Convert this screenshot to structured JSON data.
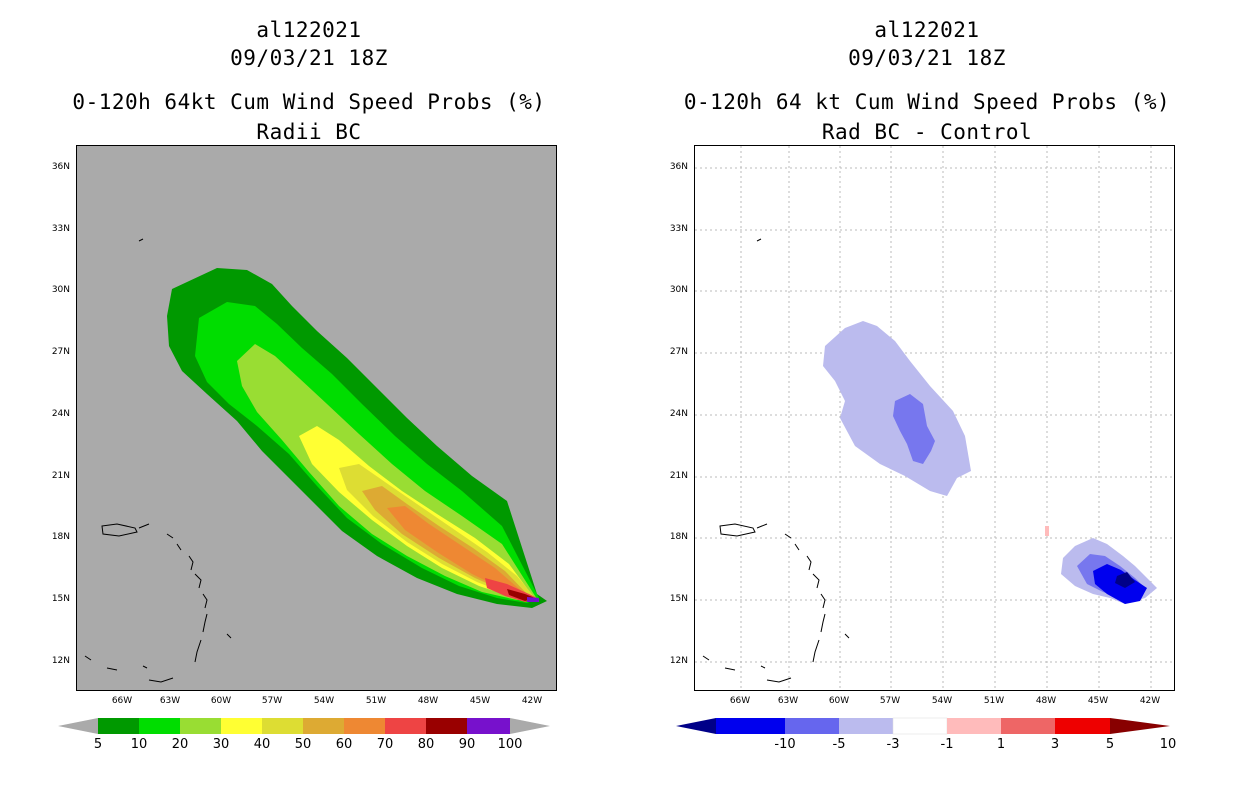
{
  "left": {
    "title1": "al122021",
    "title2": "09/03/21 18Z",
    "title3": "0-120h 64kt Cum Wind Speed Probs (%)",
    "title4": "Radii BC",
    "colorbar_labels": [
      "5",
      "10",
      "20",
      "30",
      "40",
      "50",
      "60",
      "70",
      "80",
      "90",
      "100"
    ],
    "colorbar_colors": [
      "#009900",
      "#00dd00",
      "#99dd33",
      "#ffff33",
      "#dddd33",
      "#ddaa33",
      "#ee8833",
      "#ee4444",
      "#990000",
      "#7711cc"
    ]
  },
  "right": {
    "title1": "al122021",
    "title2": "09/03/21 18Z",
    "title3": "0-120h 64 kt Cum Wind Speed Probs (%)",
    "title4": "Rad BC - Control",
    "colorbar_labels": [
      "-10",
      "-5",
      "-3",
      "-1",
      "1",
      "3",
      "5",
      "10"
    ],
    "colorbar_colors": [
      "#0000cc",
      "#6666ee",
      "#bbbbee",
      "#ffffff",
      "#ffbbbb",
      "#ee6666",
      "#ee0000"
    ]
  },
  "axes": {
    "lat_labels": [
      "36N",
      "33N",
      "30N",
      "27N",
      "24N",
      "21N",
      "18N",
      "15N",
      "12N"
    ],
    "lon_labels": [
      "66W",
      "63W",
      "60W",
      "57W",
      "54W",
      "51W",
      "48W",
      "45W",
      "42W"
    ]
  }
}
